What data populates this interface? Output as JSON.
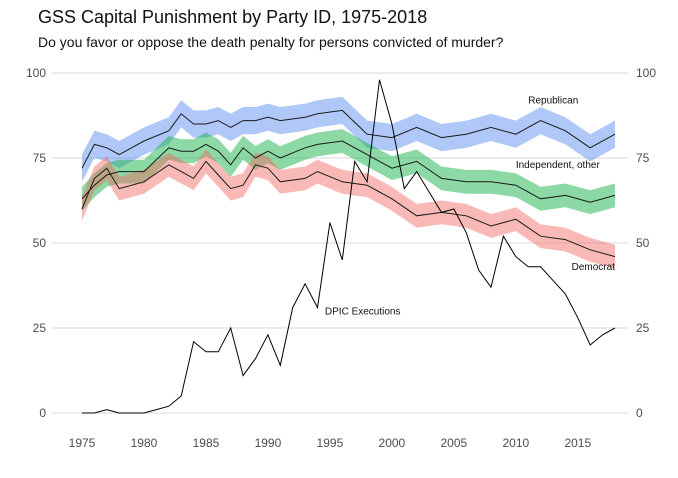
{
  "chart_data": {
    "type": "line",
    "title": "GSS Capital Punishment by Party ID, 1975-2018",
    "subtitle": "Do you favor or oppose the death penalty for persons convicted of murder?",
    "xlabel": "",
    "ylabel": "",
    "xlim": [
      1975,
      2018
    ],
    "ylim": [
      0,
      100
    ],
    "x_ticks": [
      1975,
      1980,
      1985,
      1990,
      1995,
      2000,
      2005,
      2010,
      2015
    ],
    "y_ticks": [
      0,
      25,
      50,
      75,
      100
    ],
    "grid": "horizontal",
    "legend": "none",
    "series": [
      {
        "name": "Republican",
        "label_at": [
          2011,
          91
        ],
        "color": "#4f86f0",
        "band_opacity": 0.45,
        "x": [
          1975,
          1976,
          1977,
          1978,
          1980,
          1982,
          1983,
          1984,
          1985,
          1986,
          1987,
          1988,
          1989,
          1990,
          1991,
          1993,
          1994,
          1996,
          1998,
          2000,
          2002,
          2004,
          2006,
          2008,
          2010,
          2012,
          2014,
          2016,
          2018
        ],
        "y": [
          72,
          79,
          78,
          76,
          80,
          83,
          88,
          85,
          85,
          86,
          84,
          86,
          86,
          87,
          86,
          87,
          88,
          89,
          82,
          81,
          84,
          81,
          82,
          84,
          82,
          86,
          83,
          78,
          82
        ],
        "margin": 4
      },
      {
        "name": "Independent, other",
        "label_at": [
          2010,
          72
        ],
        "color": "#19b34c",
        "band_opacity": 0.5,
        "x": [
          1975,
          1976,
          1977,
          1978,
          1980,
          1982,
          1983,
          1984,
          1985,
          1986,
          1987,
          1988,
          1989,
          1990,
          1991,
          1993,
          1994,
          1996,
          1998,
          2000,
          2002,
          2004,
          2006,
          2008,
          2010,
          2012,
          2014,
          2016,
          2018
        ],
        "y": [
          63,
          67,
          70,
          71,
          71,
          78,
          77,
          77,
          79,
          77,
          73,
          78,
          75,
          77,
          75,
          78,
          79,
          80,
          76,
          72,
          74,
          69,
          68,
          68,
          67,
          63,
          64,
          62,
          64
        ],
        "margin": 3.5
      },
      {
        "name": "Democrat",
        "label_at": [
          2014.5,
          42
        ],
        "color": "#f26660",
        "band_opacity": 0.45,
        "x": [
          1975,
          1976,
          1977,
          1978,
          1980,
          1982,
          1983,
          1984,
          1985,
          1986,
          1987,
          1988,
          1989,
          1990,
          1991,
          1993,
          1994,
          1996,
          1998,
          2000,
          2002,
          2004,
          2006,
          2008,
          2010,
          2012,
          2014,
          2016,
          2018
        ],
        "y": [
          60,
          69,
          72,
          66,
          68,
          73,
          71,
          69,
          74,
          70,
          66,
          67,
          73,
          72,
          68,
          69,
          71,
          68,
          67,
          63,
          58,
          59,
          58,
          55,
          57,
          52,
          51,
          48,
          46
        ],
        "margin": 3.5
      }
    ],
    "executions": {
      "name": "DPIC Executions",
      "label_at": [
        1995,
        29
      ],
      "color": "#000000",
      "x": [
        1975,
        1976,
        1977,
        1978,
        1979,
        1980,
        1981,
        1982,
        1983,
        1984,
        1985,
        1986,
        1987,
        1988,
        1989,
        1990,
        1991,
        1992,
        1993,
        1994,
        1995,
        1996,
        1997,
        1998,
        1999,
        2000,
        2001,
        2002,
        2003,
        2004,
        2005,
        2006,
        2007,
        2008,
        2009,
        2010,
        2011,
        2012,
        2013,
        2014,
        2015,
        2016,
        2017,
        2018
      ],
      "y": [
        0,
        0,
        1,
        0,
        0,
        0,
        1,
        2,
        5,
        21,
        18,
        18,
        25,
        11,
        16,
        23,
        14,
        31,
        38,
        31,
        56,
        45,
        74,
        68,
        98,
        85,
        66,
        71,
        65,
        59,
        60,
        53,
        42,
        37,
        52,
        46,
        43,
        43,
        39,
        35,
        28,
        20,
        23,
        25
      ],
      "y_scale": "same axis, right labels"
    }
  }
}
